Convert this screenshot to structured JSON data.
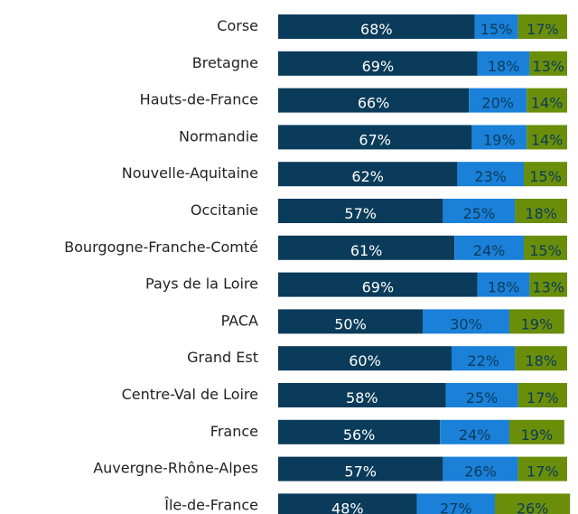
{
  "chart_data": {
    "type": "stacked-barh",
    "categories": [
      "Corse",
      "Bretagne",
      "Hauts-de-France",
      "Normandie",
      "Nouvelle-Aquitaine",
      "Occitanie",
      "Bourgogne-Franche-Comté",
      "Pays de la Loire",
      "PACA",
      "Grand Est",
      "Centre-Val de Loire",
      "France",
      "Auvergne-Rhône-Alpes",
      "Île-de-France"
    ],
    "series": [
      {
        "color": "#0a3b5a",
        "label_color": "#ffffff",
        "values": [
          68,
          69,
          66,
          67,
          62,
          57,
          61,
          69,
          50,
          60,
          58,
          56,
          57,
          48
        ],
        "value_labels": [
          "68%",
          "69%",
          "66%",
          "67%",
          "62%",
          "57%",
          "61%",
          "69%",
          "50%",
          "60%",
          "58%",
          "56%",
          "57%",
          "48%"
        ]
      },
      {
        "color": "#1a80d8",
        "label_color": "#0a3b5a",
        "values": [
          15,
          18,
          20,
          19,
          23,
          25,
          24,
          18,
          30,
          22,
          25,
          24,
          26,
          27
        ],
        "value_labels": [
          "15%",
          "18%",
          "20%",
          "19%",
          "23%",
          "25%",
          "24%",
          "18%",
          "30%",
          "22%",
          "25%",
          "24%",
          "26%",
          "27%"
        ]
      },
      {
        "color": "#6a8e0a",
        "label_color": "#0a3b5a",
        "values": [
          17,
          13,
          14,
          14,
          15,
          18,
          15,
          13,
          19,
          18,
          17,
          19,
          17,
          26
        ],
        "value_labels": [
          "17%",
          "13%",
          "14%",
          "14%",
          "15%",
          "18%",
          "15%",
          "13%",
          "19%",
          "18%",
          "17%",
          "19%",
          "17%",
          "26%"
        ]
      }
    ]
  }
}
